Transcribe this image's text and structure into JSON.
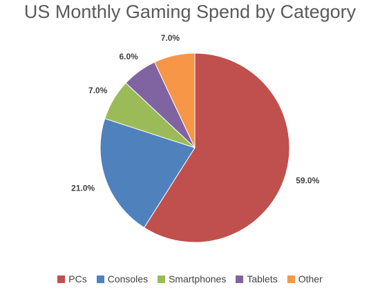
{
  "chart_data": {
    "type": "pie",
    "title": "US Monthly Gaming Spend by Category",
    "categories": [
      "PCs",
      "Consoles",
      "Smartphones",
      "Tablets",
      "Other"
    ],
    "values": [
      59.0,
      21.0,
      7.0,
      6.0,
      7.0
    ],
    "value_labels": [
      "59.0%",
      "21.0%",
      "7.0%",
      "6.0%",
      "7.0%"
    ],
    "colors": [
      "#c0504d",
      "#4f81bd",
      "#9bbb59",
      "#8064a2",
      "#f79646"
    ],
    "start_angle": "12 o'clock",
    "direction": "clockwise",
    "legend": "bottom"
  }
}
